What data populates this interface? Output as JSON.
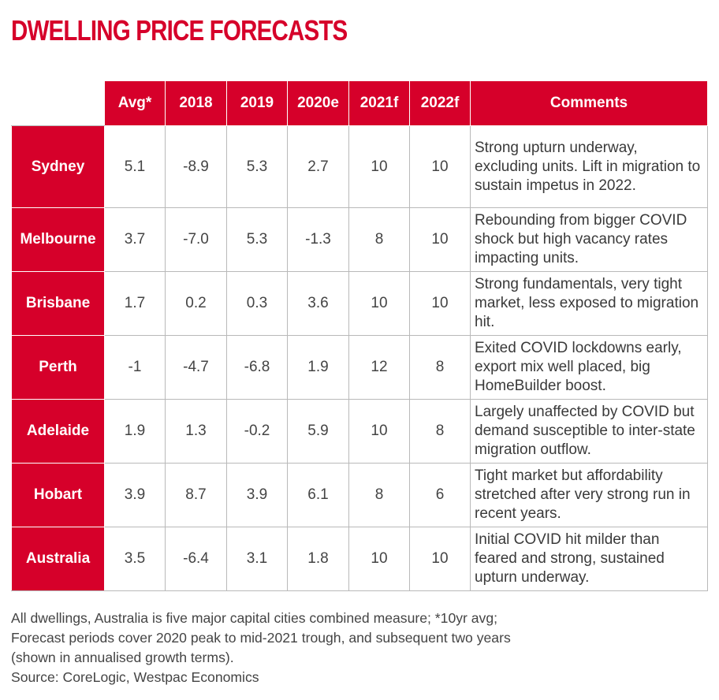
{
  "title": "DWELLING PRICE FORECASTS",
  "colors": {
    "accent": "#d6002a",
    "text": "#3a3a3a",
    "grid": "#b9b9b9"
  },
  "chart_data": {
    "type": "table",
    "title": "DWELLING PRICE FORECASTS",
    "columns": [
      "Avg*",
      "2018",
      "2019",
      "2020e",
      "2021f",
      "2022f",
      "Comments"
    ],
    "rows": [
      {
        "label": "Sydney",
        "values": [
          "5.1",
          "-8.9",
          "5.3",
          "2.7",
          "10",
          "10"
        ],
        "comment": "Strong upturn underway, excluding units. Lift in migration to sustain impetus in 2022."
      },
      {
        "label": "Melbourne",
        "values": [
          "3.7",
          "-7.0",
          "5.3",
          "-1.3",
          "8",
          "10"
        ],
        "comment": "Rebounding from bigger COVID shock but high vacancy rates impacting units."
      },
      {
        "label": "Brisbane",
        "values": [
          "1.7",
          "0.2",
          "0.3",
          "3.6",
          "10",
          "10"
        ],
        "comment": "Strong fundamentals, very tight market, less exposed to migration hit."
      },
      {
        "label": "Perth",
        "values": [
          "-1",
          "-4.7",
          "-6.8",
          "1.9",
          "12",
          "8"
        ],
        "comment": "Exited COVID lockdowns early, export mix well placed, big HomeBuilder boost."
      },
      {
        "label": "Adelaide",
        "values": [
          "1.9",
          "1.3",
          "-0.2",
          "5.9",
          "10",
          "8"
        ],
        "comment": "Largely unaffected by COVID but demand susceptible to inter-state migration outflow."
      },
      {
        "label": "Hobart",
        "values": [
          "3.9",
          "8.7",
          "3.9",
          "6.1",
          "8",
          "6"
        ],
        "comment": "Tight market but affordability stretched after very strong run in recent years."
      },
      {
        "label": "Australia",
        "values": [
          "3.5",
          "-6.4",
          "3.1",
          "1.8",
          "10",
          "10"
        ],
        "comment": "Initial COVID hit milder than feared and strong, sustained upturn underway."
      }
    ]
  },
  "footnote": {
    "lines": [
      "All dwellings, Australia is five major capital cities combined measure; *10yr avg;",
      "Forecast periods cover 2020 peak to mid-2021 trough, and subsequent two years",
      "(shown in annualised growth terms).",
      "Source: CoreLogic, Westpac Economics"
    ]
  }
}
